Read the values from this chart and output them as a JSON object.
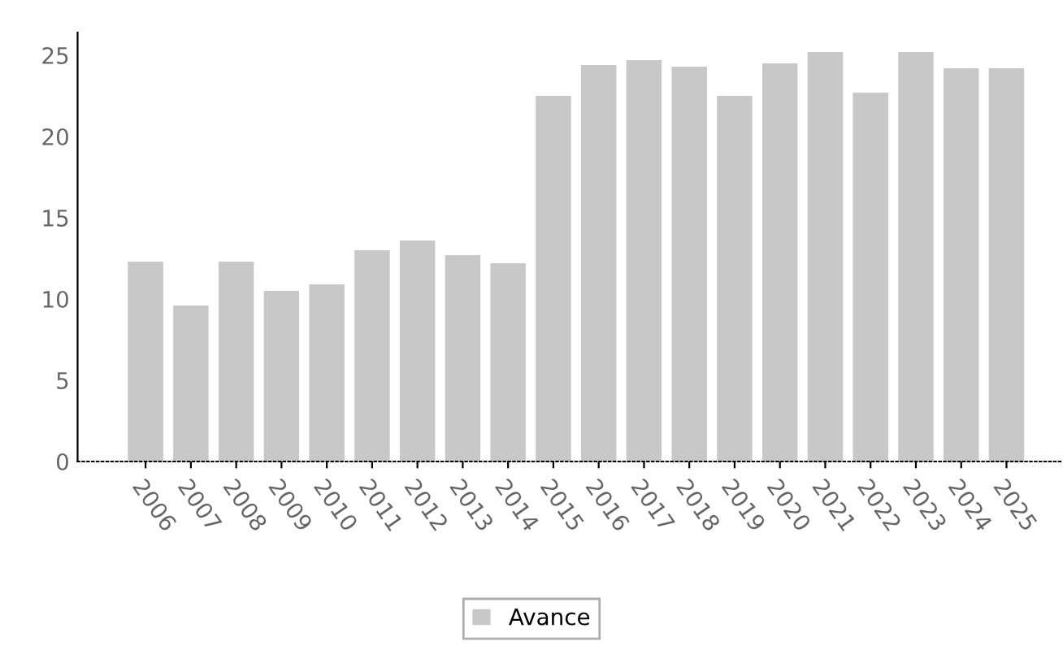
{
  "chart_data": {
    "type": "bar",
    "categories": [
      "2006",
      "2007",
      "2008",
      "2009",
      "2010",
      "2011",
      "2012",
      "2013",
      "2014",
      "2015",
      "2016",
      "2017",
      "2018",
      "2019",
      "2020",
      "2021",
      "2022",
      "2023",
      "2024",
      "2025"
    ],
    "series": [
      {
        "name": "Avance",
        "color": "#c8c8c8",
        "values": [
          12.3,
          9.6,
          12.3,
          10.5,
          10.9,
          13.0,
          13.6,
          12.7,
          12.2,
          22.5,
          24.4,
          24.7,
          24.3,
          22.5,
          24.5,
          25.2,
          22.7,
          25.2,
          24.2,
          24.2
        ]
      }
    ],
    "ylim": [
      0,
      26.4
    ],
    "yticks": [
      0,
      5,
      10,
      15,
      20,
      25
    ],
    "grid": false,
    "legend": "bottom"
  }
}
